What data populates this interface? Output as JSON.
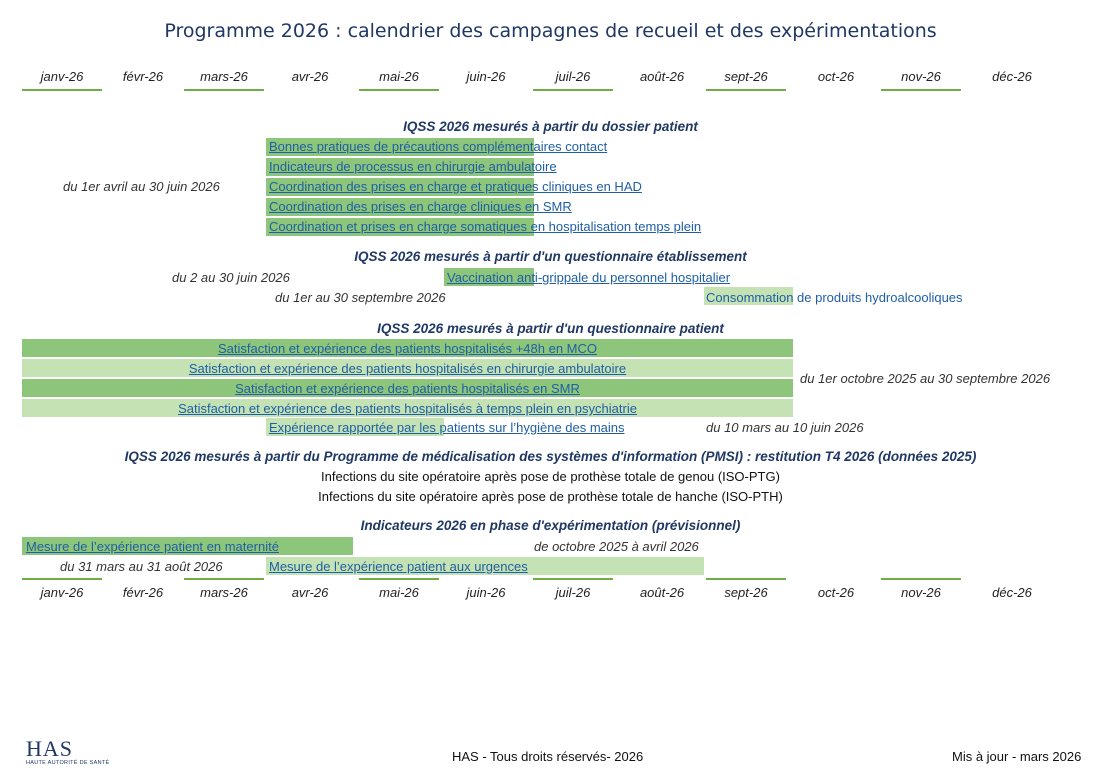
{
  "title": "Programme 2026 : calendrier des campagnes de recueil et des expérimentations",
  "months": [
    "janv-26",
    "févr-26",
    "mars-26",
    "avr-26",
    "mai-26",
    "juin-26",
    "juil-26",
    "août-26",
    "sept-26",
    "oct-26",
    "nov-26",
    "déc-26"
  ],
  "colors": {
    "dark_green": "#8dc67a",
    "light_green": "#c4e2b4",
    "month_line": "#70ad47",
    "link": "#1f5fa6",
    "heading": "#1f3864"
  },
  "sections": {
    "dossier": {
      "heading": "IQSS 2026 mesurés à partir du dossier patient",
      "date": "du 1er avril au 30 juin 2026",
      "items": [
        "Bonnes pratiques de précautions complémentaires contact",
        "Indicateurs de processus en chirurgie ambulatoire",
        "Coordination des prises en charge et pratiques cliniques en HAD",
        "Coordination des prises en charge cliniques en SMR",
        "Coordination et prises en charge somatiques en hospitalisation temps plein"
      ]
    },
    "etab": {
      "heading": "IQSS 2026 mesurés à partir d'un questionnaire établissement",
      "date1": "du 2 au 30 juin 2026",
      "item1": "Vaccination anti-grippale du personnel hospitalier",
      "date2": "du 1er au 30 septembre 2026",
      "item2": "Consommation de produits hydroalcooliques"
    },
    "patient": {
      "heading": "IQSS 2026 mesurés à partir d'un questionnaire patient",
      "items": [
        "Satisfaction et expérience des patients hospitalisés +48h en MCO",
        "Satisfaction et expérience des patients hospitalisés en chirurgie ambulatoire",
        "Satisfaction et expérience des patients hospitalisés en SMR",
        "Satisfaction et expérience des patients hospitalisés à temps plein en psychiatrie"
      ],
      "date": "du 1er octobre 2025 au 30 septembre 2026",
      "item5": "Expérience rapportée par les patients sur l’hygiène des mains",
      "date5": "du 10 mars au 10 juin 2026"
    },
    "pmsi": {
      "heading": "IQSS 2026 mesurés à partir du Programme de médicalisation des systèmes d'information (PMSI) : restitution T4 2026  (données 2025)",
      "items": [
        "Infections du site opératoire après pose de prothèse totale de genou (ISO-PTG)",
        "Infections du site opératoire après pose de prothèse totale de hanche (ISO-PTH)"
      ]
    },
    "exp": {
      "heading": "Indicateurs 2026 en phase d'expérimentation (prévisionnel)",
      "item1": "Mesure de l’expérience patient en maternité",
      "date1": "de octobre 2025 à avril 2026",
      "date2": "du 31 mars au 31 août 2026",
      "item2": "Mesure de l’expérience patient aux urgences"
    }
  },
  "footer": {
    "logo_text": "HAS",
    "logo_sub": "HAUTE AUTORITÉ DE SANTÉ",
    "rights": "HAS - Tous droits réservés- 2026",
    "updated": "Mis à jour - mars 2026"
  }
}
